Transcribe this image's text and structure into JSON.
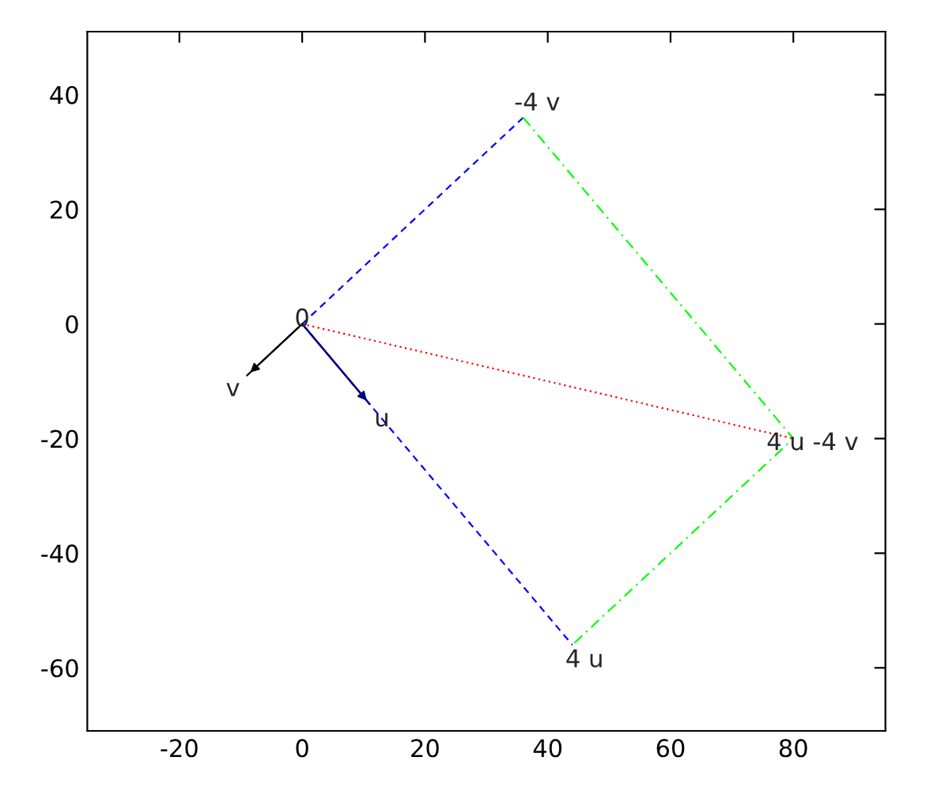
{
  "chart_data": {
    "type": "line",
    "series": [
      {
        "color": "#0000ff",
        "line_style": "dashed",
        "x": [
          0,
          36
        ],
        "values": [
          0,
          36
        ]
      },
      {
        "color": "#0000ff",
        "line_style": "dashed",
        "x": [
          0,
          44
        ],
        "values": [
          0,
          -56
        ]
      },
      {
        "color": "#00ff00",
        "line_style": "dashdot",
        "x": [
          36,
          80,
          44
        ],
        "values": [
          36,
          -20,
          -56
        ]
      },
      {
        "color": "#ff0000",
        "line_style": "dotted",
        "x": [
          0,
          80
        ],
        "values": [
          0,
          -20
        ]
      },
      {
        "color": "#000080",
        "line_style": "solid",
        "x": [
          0,
          11
        ],
        "values": [
          0,
          -14
        ]
      },
      {
        "color": "#000000",
        "line_style": "solid",
        "x": [
          0,
          -9
        ],
        "values": [
          0,
          -9
        ]
      }
    ],
    "annotations": [
      {
        "text": "0",
        "x": 0,
        "y": 0
      },
      {
        "text": "v",
        "x": -9,
        "y": -9
      },
      {
        "text": "u",
        "x": 11,
        "y": -14
      },
      {
        "text": "4 u",
        "x": 44,
        "y": -56
      },
      {
        "text": "-4 v",
        "x": 36,
        "y": 36
      },
      {
        "text": "4 u -4 v",
        "x": 80,
        "y": -20
      }
    ],
    "xlim": [
      -35,
      95
    ],
    "ylim": [
      -71,
      51
    ],
    "xticks": [
      -20,
      0,
      20,
      40,
      60,
      80
    ],
    "yticks": [
      -60,
      -40,
      -20,
      0,
      20,
      40
    ],
    "grid": false,
    "legend": false
  }
}
